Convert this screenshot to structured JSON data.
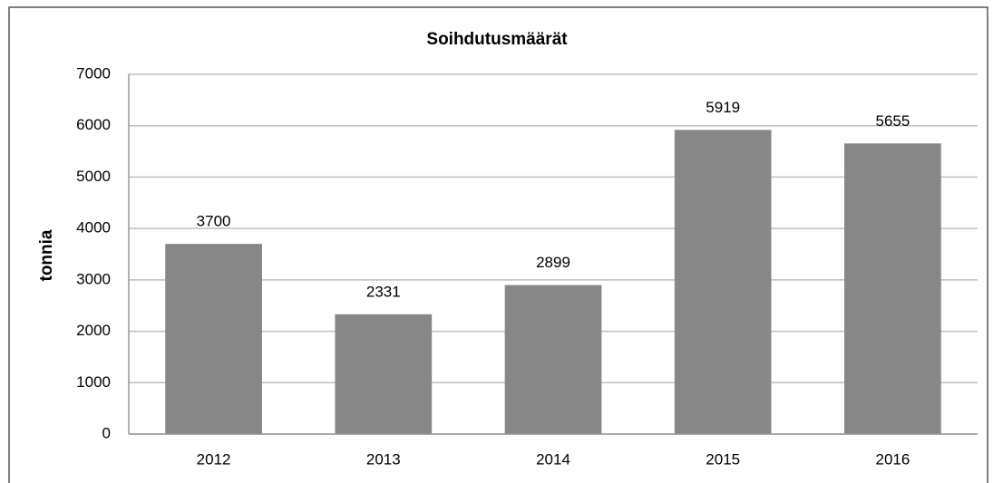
{
  "chart_data": {
    "type": "bar",
    "title": "Soihdutusmäärät",
    "y_label": "tonnia",
    "categories": [
      "2012",
      "2013",
      "2014",
      "2015",
      "2016"
    ],
    "values": [
      3700,
      2331,
      2899,
      5919,
      5655
    ],
    "color": "#878787",
    "ylim": [
      0,
      7000
    ],
    "yticks": [
      0,
      1000,
      2000,
      3000,
      4000,
      5000,
      6000,
      7000
    ],
    "grid": true
  }
}
